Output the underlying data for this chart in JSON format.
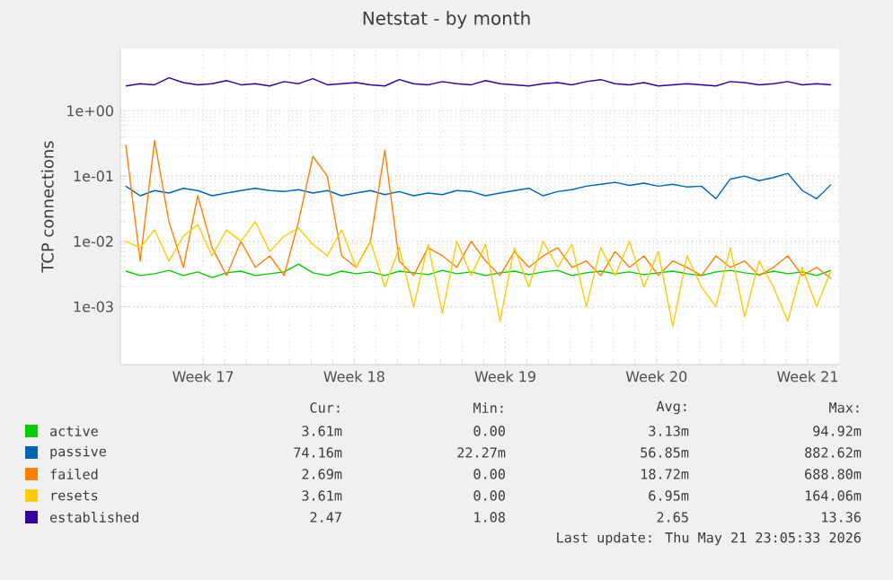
{
  "chart_data": {
    "type": "line",
    "title": "Netstat - by month",
    "ylabel": "TCP connections",
    "log": "y",
    "grid": true,
    "legend": "bottom",
    "marker": "none",
    "line_style": "solid",
    "x": [
      "2026-04-20T00:00",
      "2026-04-20T16:00",
      "2026-04-21T08:00",
      "2026-04-22T00:00",
      "2026-04-22T16:00",
      "2026-04-23T08:00",
      "2026-04-24T00:00",
      "2026-04-24T16:00",
      "2026-04-25T08:00",
      "2026-04-26T00:00",
      "2026-04-26T16:00",
      "2026-04-27T08:00",
      "2026-04-28T00:00",
      "2026-04-28T16:00",
      "2026-04-29T08:00",
      "2026-04-30T00:00",
      "2026-04-30T16:00",
      "2026-05-01T08:00",
      "2026-05-02T00:00",
      "2026-05-02T16:00",
      "2026-05-03T08:00",
      "2026-05-04T00:00",
      "2026-05-04T16:00",
      "2026-05-05T08:00",
      "2026-05-06T00:00",
      "2026-05-06T16:00",
      "2026-05-07T08:00",
      "2026-05-08T00:00",
      "2026-05-08T16:00",
      "2026-05-09T08:00",
      "2026-05-10T00:00",
      "2026-05-10T16:00",
      "2026-05-11T08:00",
      "2026-05-12T00:00",
      "2026-05-12T16:00",
      "2026-05-13T08:00",
      "2026-05-14T00:00",
      "2026-05-14T16:00",
      "2026-05-15T08:00",
      "2026-05-16T00:00",
      "2026-05-16T16:00",
      "2026-05-17T08:00",
      "2026-05-18T00:00",
      "2026-05-18T16:00",
      "2026-05-19T08:00",
      "2026-05-20T00:00",
      "2026-05-20T16:00",
      "2026-05-21T08:00",
      "2026-05-22T00:00",
      "2026-05-22T16:00"
    ],
    "xlim": [
      "2026-04-19T18:00",
      "2026-05-23T01:00"
    ],
    "xticks": [
      {
        "value": "2026-04-23T14:00",
        "label": "Week 17"
      },
      {
        "value": "2026-04-30T14:00",
        "label": "Week 18"
      },
      {
        "value": "2026-05-07T14:00",
        "label": "Week 19"
      },
      {
        "value": "2026-05-14T14:00",
        "label": "Week 20"
      },
      {
        "value": "2026-05-21T14:00",
        "label": "Week 21"
      }
    ],
    "ylim": [
      0.00013,
      9
    ],
    "yticks": [
      {
        "value": 0.001,
        "label": "1e-03"
      },
      {
        "value": 0.01,
        "label": "1e-02"
      },
      {
        "value": 0.1,
        "label": "1e-01"
      },
      {
        "value": 1,
        "label": "1e+00"
      }
    ],
    "series": [
      {
        "name": "active",
        "color": "#00cc00",
        "values": [
          0.0035,
          0.003,
          0.0032,
          0.0036,
          0.003,
          0.0034,
          0.0028,
          0.0033,
          0.0035,
          0.003,
          0.0032,
          0.0034,
          0.0045,
          0.0033,
          0.003,
          0.0035,
          0.0032,
          0.0034,
          0.003,
          0.0035,
          0.0033,
          0.0031,
          0.0036,
          0.0032,
          0.0034,
          0.003,
          0.0033,
          0.0035,
          0.0031,
          0.0034,
          0.0036,
          0.003,
          0.0033,
          0.0035,
          0.0032,
          0.0034,
          0.0031,
          0.0033,
          0.0035,
          0.0032,
          0.003,
          0.0034,
          0.0036,
          0.0033,
          0.0031,
          0.0035,
          0.0032,
          0.0034,
          0.003,
          0.0036
        ]
      },
      {
        "name": "passive",
        "color": "#0066b3",
        "values": [
          0.07,
          0.05,
          0.06,
          0.055,
          0.065,
          0.06,
          0.05,
          0.055,
          0.06,
          0.065,
          0.06,
          0.058,
          0.062,
          0.055,
          0.06,
          0.05,
          0.055,
          0.06,
          0.052,
          0.058,
          0.05,
          0.055,
          0.052,
          0.06,
          0.058,
          0.05,
          0.055,
          0.06,
          0.065,
          0.05,
          0.058,
          0.062,
          0.07,
          0.075,
          0.08,
          0.072,
          0.078,
          0.07,
          0.075,
          0.068,
          0.07,
          0.045,
          0.09,
          0.1,
          0.085,
          0.095,
          0.11,
          0.06,
          0.045,
          0.074
        ]
      },
      {
        "name": "failed",
        "color": "#ff8000",
        "values": [
          0.3,
          0.005,
          0.35,
          0.02,
          0.004,
          0.05,
          0.008,
          0.003,
          0.01,
          0.004,
          0.006,
          0.003,
          0.02,
          0.2,
          0.1,
          0.006,
          0.004,
          0.01,
          0.25,
          0.005,
          0.003,
          0.008,
          0.006,
          0.004,
          0.01,
          0.005,
          0.003,
          0.007,
          0.004,
          0.006,
          0.008,
          0.004,
          0.005,
          0.003,
          0.007,
          0.004,
          0.006,
          0.003,
          0.005,
          0.004,
          0.003,
          0.006,
          0.004,
          0.005,
          0.003,
          0.004,
          0.006,
          0.003,
          0.004,
          0.0027
        ]
      },
      {
        "name": "resets",
        "color": "#ffcc00",
        "values": [
          0.01,
          0.008,
          0.015,
          0.005,
          0.012,
          0.018,
          0.006,
          0.015,
          0.01,
          0.02,
          0.007,
          0.012,
          0.016,
          0.009,
          0.006,
          0.015,
          0.004,
          0.01,
          0.002,
          0.008,
          0.001,
          0.009,
          0.0008,
          0.01,
          0.003,
          0.009,
          0.0006,
          0.008,
          0.002,
          0.01,
          0.004,
          0.009,
          0.001,
          0.008,
          0.003,
          0.01,
          0.002,
          0.007,
          0.0005,
          0.006,
          0.002,
          0.001,
          0.008,
          0.0007,
          0.005,
          0.002,
          0.0006,
          0.004,
          0.001,
          0.0036
        ]
      },
      {
        "name": "established",
        "color": "#330099",
        "values": [
          2.4,
          2.6,
          2.5,
          3.2,
          2.7,
          2.5,
          2.6,
          2.9,
          2.5,
          2.6,
          2.4,
          2.8,
          2.6,
          3.1,
          2.5,
          2.6,
          2.7,
          2.5,
          2.4,
          3.0,
          2.6,
          2.5,
          2.8,
          2.6,
          2.5,
          2.9,
          2.6,
          2.5,
          2.4,
          2.6,
          2.7,
          2.5,
          2.8,
          3.0,
          2.6,
          2.5,
          2.7,
          2.4,
          2.5,
          2.6,
          2.5,
          2.4,
          2.8,
          2.7,
          2.5,
          2.6,
          2.8,
          2.5,
          2.6,
          2.5
        ]
      }
    ],
    "annotations": [
      "Cur:",
      "Min:",
      "Avg:",
      "Max:",
      "3.61m",
      "0.00",
      "3.13m",
      "94.92m",
      "74.16m",
      "22.27m",
      "56.85m",
      "882.62m",
      "2.69m",
      "0.00",
      "18.72m",
      "688.80m",
      "3.61m",
      "0.00",
      "6.95m",
      "164.06m",
      "2.47",
      "1.08",
      "2.65",
      "13.36",
      "Last update: Thu May 21 23:05:33 2026"
    ]
  }
}
